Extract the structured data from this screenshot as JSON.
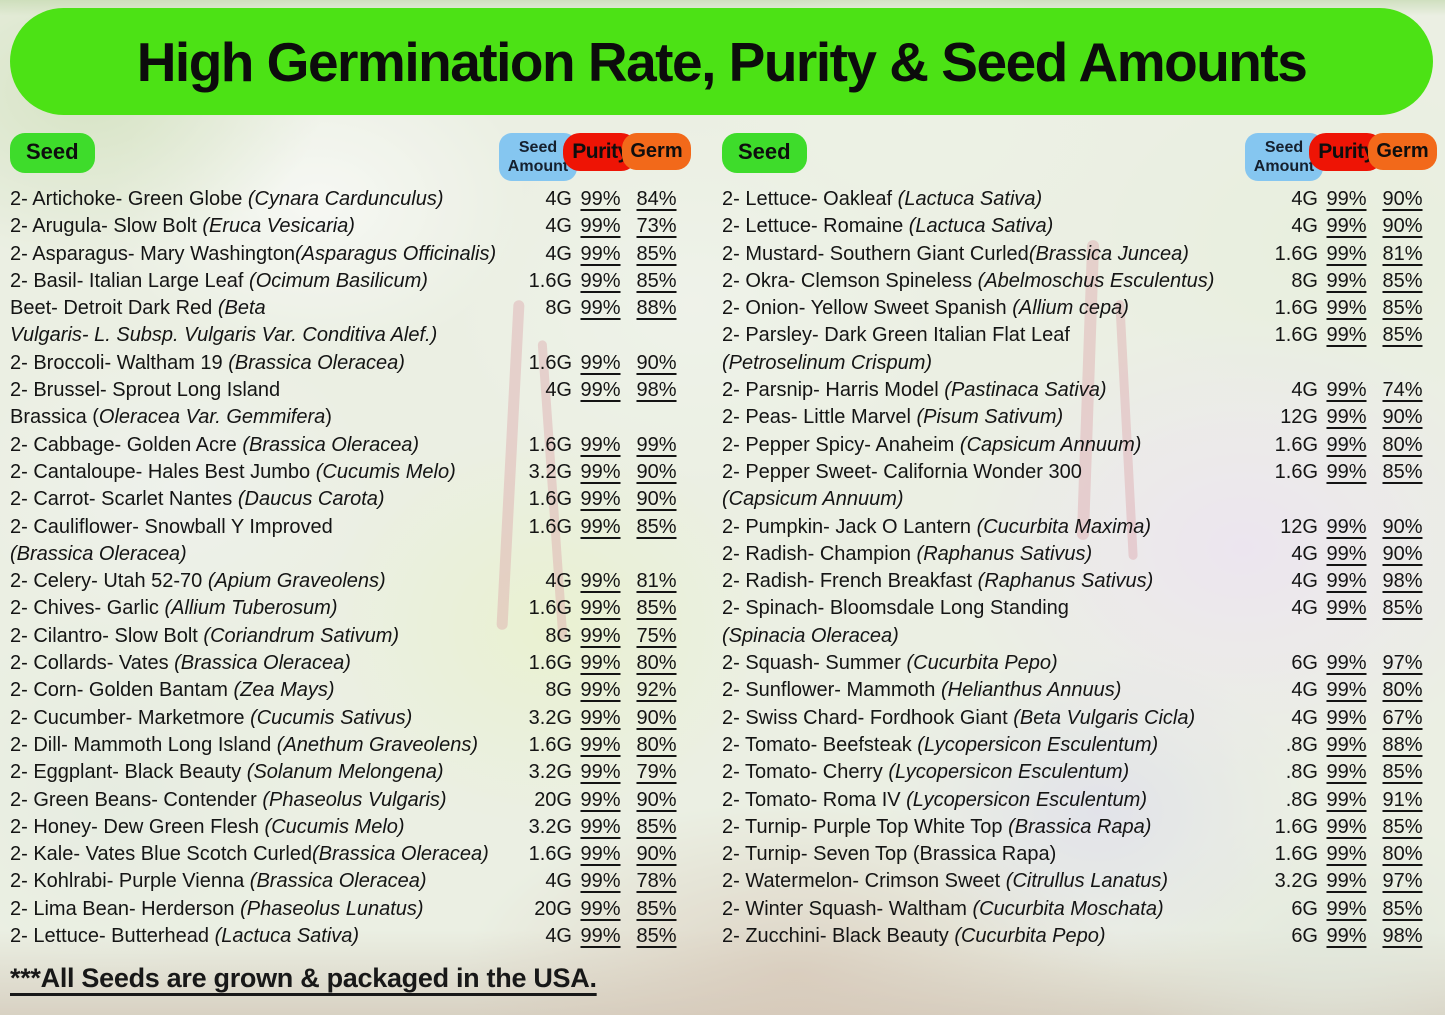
{
  "title": "High Germination Rate, Purity & Seed Amounts",
  "header": {
    "seed_label": "Seed",
    "amount_label": "Seed\nAmount",
    "purity_label": "Purity",
    "germ_label": "Germ"
  },
  "footer": "***All Seeds are grown & packaged in the USA.",
  "colors": {
    "banner_green": "#4ce215",
    "seed_pill_green": "#3edc2b",
    "amount_pill_blue": "#85c6f0",
    "purity_pill_red": "#ee1405",
    "germ_pill_orange": "#f2691a"
  },
  "left_rows": [
    {
      "name": [
        {
          "t": "2- Artichoke- Green Globe ",
          "i": false
        },
        {
          "t": "(Cynara Cardunculus)",
          "i": true
        }
      ],
      "amount": "4G",
      "purity": "99%",
      "germ": "84%"
    },
    {
      "name": [
        {
          "t": "2- Arugula- Slow Bolt ",
          "i": false
        },
        {
          "t": "(Eruca Vesicaria)",
          "i": true
        }
      ],
      "amount": "4G",
      "purity": "99%",
      "germ": "73%"
    },
    {
      "name": [
        {
          "t": "2- Asparagus- Mary Washington",
          "i": false
        },
        {
          "t": "(Asparagus Officinalis)",
          "i": true
        }
      ],
      "amount": "4G",
      "purity": "99%",
      "germ": "85%"
    },
    {
      "name": [
        {
          "t": "2- Basil- Italian Large Leaf ",
          "i": false
        },
        {
          "t": "(Ocimum Basilicum)",
          "i": true
        }
      ],
      "amount": "1.6G",
      "purity": "99%",
      "germ": "85%"
    },
    {
      "name": [
        {
          "t": "Beet- Detroit Dark Red ",
          "i": false
        },
        {
          "t": "(Beta",
          "i": true
        }
      ],
      "name2": [
        {
          "t": "Vulgaris- L. Subsp. Vulgaris Var. Conditiva Alef.)",
          "i": true
        }
      ],
      "amount": "8G",
      "purity": "99%",
      "germ": "88%"
    },
    {
      "name": [
        {
          "t": "2- Broccoli- Waltham 19 ",
          "i": false
        },
        {
          "t": "(Brassica Oleracea)",
          "i": true
        }
      ],
      "amount": "1.6G",
      "purity": "99%",
      "germ": "90%"
    },
    {
      "name": [
        {
          "t": "2- Brussel- Sprout Long Island",
          "i": false
        }
      ],
      "name2": [
        {
          "t": "Brassica (",
          "i": false
        },
        {
          "t": "Oleracea Var. Gemmifera",
          "i": true
        },
        {
          "t": ")",
          "i": false
        }
      ],
      "amount": "4G",
      "purity": "99%",
      "germ": "98%"
    },
    {
      "name": [
        {
          "t": "2- Cabbage- Golden Acre ",
          "i": false
        },
        {
          "t": "(Brassica Oleracea)",
          "i": true
        }
      ],
      "amount": "1.6G",
      "purity": "99%",
      "germ": "99%"
    },
    {
      "name": [
        {
          "t": "2- Cantaloupe- Hales Best Jumbo ",
          "i": false
        },
        {
          "t": "(Cucumis Melo)",
          "i": true
        }
      ],
      "amount": "3.2G",
      "purity": "99%",
      "germ": "90%"
    },
    {
      "name": [
        {
          "t": "2- Carrot- Scarlet Nantes ",
          "i": false
        },
        {
          "t": "(Daucus Carota)",
          "i": true
        }
      ],
      "amount": "1.6G",
      "purity": "99%",
      "germ": "90%"
    },
    {
      "name": [
        {
          "t": "2- Cauliflower- Snowball Y Improved",
          "i": false
        }
      ],
      "name2": [
        {
          "t": "(Brassica Oleracea)",
          "i": true
        }
      ],
      "amount": "1.6G",
      "purity": "99%",
      "germ": "85%"
    },
    {
      "name": [
        {
          "t": "2- Celery- Utah 52-70 ",
          "i": false
        },
        {
          "t": "(Apium Graveolens)",
          "i": true
        }
      ],
      "amount": "4G",
      "purity": "99%",
      "germ": "81%"
    },
    {
      "name": [
        {
          "t": "2- Chives- Garlic ",
          "i": false
        },
        {
          "t": "(Allium Tuberosum)",
          "i": true
        }
      ],
      "amount": "1.6G",
      "purity": "99%",
      "germ": "85%"
    },
    {
      "name": [
        {
          "t": "2- Cilantro- Slow Bolt ",
          "i": false
        },
        {
          "t": "(Coriandrum Sativum)",
          "i": true
        }
      ],
      "amount": "8G",
      "purity": "99%",
      "germ": "75%"
    },
    {
      "name": [
        {
          "t": "2- Collards- Vates ",
          "i": false
        },
        {
          "t": "(Brassica Oleracea)",
          "i": true
        }
      ],
      "amount": "1.6G",
      "purity": "99%",
      "germ": "80%"
    },
    {
      "name": [
        {
          "t": "2- Corn- Golden Bantam ",
          "i": false
        },
        {
          "t": "(Zea Mays)",
          "i": true
        }
      ],
      "amount": "8G",
      "purity": "99%",
      "germ": "92%"
    },
    {
      "name": [
        {
          "t": "2- Cucumber- Marketmore ",
          "i": false
        },
        {
          "t": "(Cucumis Sativus)",
          "i": true
        }
      ],
      "amount": "3.2G",
      "purity": "99%",
      "germ": "90%"
    },
    {
      "name": [
        {
          "t": "2- Dill- Mammoth Long Island ",
          "i": false
        },
        {
          "t": "(Anethum Graveolens)",
          "i": true
        }
      ],
      "amount": "1.6G",
      "purity": "99%",
      "germ": "80%"
    },
    {
      "name": [
        {
          "t": "2- Eggplant- Black Beauty ",
          "i": false
        },
        {
          "t": "(Solanum Melongena)",
          "i": true
        }
      ],
      "amount": "3.2G",
      "purity": "99%",
      "germ": "79%"
    },
    {
      "name": [
        {
          "t": "2- Green Beans- Contender ",
          "i": false
        },
        {
          "t": "(Phaseolus Vulgaris)",
          "i": true
        }
      ],
      "amount": "20G",
      "purity": "99%",
      "germ": "90%"
    },
    {
      "name": [
        {
          "t": "2- Honey- Dew Green Flesh ",
          "i": false
        },
        {
          "t": "(Cucumis Melo)",
          "i": true
        }
      ],
      "amount": "3.2G",
      "purity": "99%",
      "germ": "85%"
    },
    {
      "name": [
        {
          "t": "2- Kale- Vates Blue Scotch Curled",
          "i": false
        },
        {
          "t": "(Brassica Oleracea)",
          "i": true
        }
      ],
      "amount": "1.6G",
      "purity": "99%",
      "germ": "90%"
    },
    {
      "name": [
        {
          "t": "2- Kohlrabi- Purple Vienna ",
          "i": false
        },
        {
          "t": "(Brassica Oleracea)",
          "i": true
        }
      ],
      "amount": "4G",
      "purity": "99%",
      "germ": "78%"
    },
    {
      "name": [
        {
          "t": "2- Lima Bean- Herderson ",
          "i": false
        },
        {
          "t": "(Phaseolus Lunatus)",
          "i": true
        }
      ],
      "amount": "20G",
      "purity": "99%",
      "germ": "85%"
    },
    {
      "name": [
        {
          "t": "2- Lettuce- Butterhead ",
          "i": false
        },
        {
          "t": "(Lactuca Sativa)",
          "i": true
        }
      ],
      "amount": "4G",
      "purity": "99%",
      "germ": "85%"
    }
  ],
  "right_rows": [
    {
      "name": [
        {
          "t": "2- Lettuce- Oakleaf ",
          "i": false
        },
        {
          "t": "(Lactuca Sativa)",
          "i": true
        }
      ],
      "amount": "4G",
      "purity": "99%",
      "germ": "90%"
    },
    {
      "name": [
        {
          "t": "2- Lettuce- Romaine ",
          "i": false
        },
        {
          "t": "(Lactuca Sativa)",
          "i": true
        }
      ],
      "amount": "4G",
      "purity": "99%",
      "germ": "90%"
    },
    {
      "name": [
        {
          "t": "2- Mustard-  Southern Giant Curled",
          "i": false
        },
        {
          "t": "(Brassica Juncea)",
          "i": true
        }
      ],
      "amount": "1.6G",
      "purity": "99%",
      "germ": "81%"
    },
    {
      "name": [
        {
          "t": "2- Okra- Clemson Spineless ",
          "i": false
        },
        {
          "t": "(Abelmoschus Esculentus)",
          "i": true
        }
      ],
      "amount": "8G",
      "purity": "99%",
      "germ": "85%"
    },
    {
      "name": [
        {
          "t": "2- Onion- Yellow Sweet Spanish ",
          "i": false
        },
        {
          "t": "(Allium cepa)",
          "i": true
        }
      ],
      "amount": "1.6G",
      "purity": "99%",
      "germ": "85%"
    },
    {
      "name": [
        {
          "t": "2- Parsley- Dark Green Italian Flat Leaf",
          "i": false
        }
      ],
      "name2": [
        {
          "t": "(Petroselinum Crispum)",
          "i": true
        }
      ],
      "amount": "1.6G",
      "purity": "99%",
      "germ": "85%"
    },
    {
      "name": [
        {
          "t": "2- Parsnip- Harris Model ",
          "i": false
        },
        {
          "t": "(Pastinaca Sativa)",
          "i": true
        }
      ],
      "amount": "4G",
      "purity": "99%",
      "germ": "74%"
    },
    {
      "name": [
        {
          "t": "2- Peas- Little Marvel ",
          "i": false
        },
        {
          "t": "(Pisum Sativum)",
          "i": true
        }
      ],
      "amount": "12G",
      "purity": "99%",
      "germ": "90%"
    },
    {
      "name": [
        {
          "t": "2- Pepper Spicy- Anaheim ",
          "i": false
        },
        {
          "t": "(Capsicum Annuum)",
          "i": true
        }
      ],
      "amount": "1.6G",
      "purity": "99%",
      "germ": "80%"
    },
    {
      "name": [
        {
          "t": "2- Pepper Sweet- California Wonder 300",
          "i": false
        }
      ],
      "name2": [
        {
          "t": "(Capsicum Annuum)",
          "i": true
        }
      ],
      "amount": "1.6G",
      "purity": "99%",
      "germ": "85%"
    },
    {
      "name": [
        {
          "t": "2- Pumpkin- Jack O Lantern ",
          "i": false
        },
        {
          "t": "(Cucurbita Maxima)",
          "i": true
        }
      ],
      "amount": "12G",
      "purity": "99%",
      "germ": "90%"
    },
    {
      "name": [
        {
          "t": "2- Radish- Champion ",
          "i": false
        },
        {
          "t": "(Raphanus Sativus)",
          "i": true
        }
      ],
      "amount": "4G",
      "purity": "99%",
      "germ": "90%"
    },
    {
      "name": [
        {
          "t": "2- Radish- French Breakfast ",
          "i": false
        },
        {
          "t": "(Raphanus Sativus)",
          "i": true
        }
      ],
      "amount": "4G",
      "purity": "99%",
      "germ": "98%"
    },
    {
      "name": [
        {
          "t": "2- Spinach- Bloomsdale Long Standing",
          "i": false
        }
      ],
      "name2": [
        {
          "t": "(Spinacia Oleracea)",
          "i": true
        }
      ],
      "amount": "4G",
      "purity": "99%",
      "germ": "85%"
    },
    {
      "name": [
        {
          "t": "2- Squash- Summer ",
          "i": false
        },
        {
          "t": "(Cucurbita Pepo)",
          "i": true
        }
      ],
      "amount": "6G",
      "purity": "99%",
      "germ": "97%"
    },
    {
      "name": [
        {
          "t": "2- Sunflower- Mammoth ",
          "i": false
        },
        {
          "t": "(Helianthus Annuus)",
          "i": true
        }
      ],
      "amount": "4G",
      "purity": "99%",
      "germ": "80%"
    },
    {
      "name": [
        {
          "t": "2- Swiss Chard- Fordhook Giant ",
          "i": false
        },
        {
          "t": "(Beta Vulgaris Cicla)",
          "i": true
        }
      ],
      "amount": "4G",
      "purity": "99%",
      "germ": "67%"
    },
    {
      "name": [
        {
          "t": "2- Tomato- Beefsteak ",
          "i": false
        },
        {
          "t": "(Lycopersicon Esculentum)",
          "i": true
        }
      ],
      "amount": ".8G",
      "purity": "99%",
      "germ": "88%"
    },
    {
      "name": [
        {
          "t": "2- Tomato- Cherry ",
          "i": false
        },
        {
          "t": "(Lycopersicon Esculentum)",
          "i": true
        }
      ],
      "amount": ".8G",
      "purity": "99%",
      "germ": "85%"
    },
    {
      "name": [
        {
          "t": "2- Tomato- Roma IV  ",
          "i": false
        },
        {
          "t": "(Lycopersicon Esculentum)",
          "i": true
        }
      ],
      "amount": ".8G",
      "purity": "99%",
      "germ": "91%"
    },
    {
      "name": [
        {
          "t": "2- Turnip- Purple Top White Top ",
          "i": false
        },
        {
          "t": "(Brassica Rapa)",
          "i": true
        }
      ],
      "amount": "1.6G",
      "purity": "99%",
      "germ": "85%"
    },
    {
      "name": [
        {
          "t": "2- Turnip- Seven Top (Brassica Rapa)",
          "i": false
        }
      ],
      "amount": "1.6G",
      "purity": "99%",
      "germ": "80%"
    },
    {
      "name": [
        {
          "t": "2- Watermelon- Crimson Sweet ",
          "i": false
        },
        {
          "t": "(Citrullus Lanatus)",
          "i": true
        }
      ],
      "amount": "3.2G",
      "purity": "99%",
      "germ": "97%"
    },
    {
      "name": [
        {
          "t": "2- Winter Squash- Waltham ",
          "i": false
        },
        {
          "t": "(Cucurbita Moschata)",
          "i": true
        }
      ],
      "amount": "6G",
      "purity": "99%",
      "germ": "85%"
    },
    {
      "name": [
        {
          "t": "2- Zucchini-  Black Beauty ",
          "i": false
        },
        {
          "t": "(Cucurbita Pepo)",
          "i": true
        }
      ],
      "amount": "6G",
      "purity": "99%",
      "germ": "98%"
    }
  ]
}
